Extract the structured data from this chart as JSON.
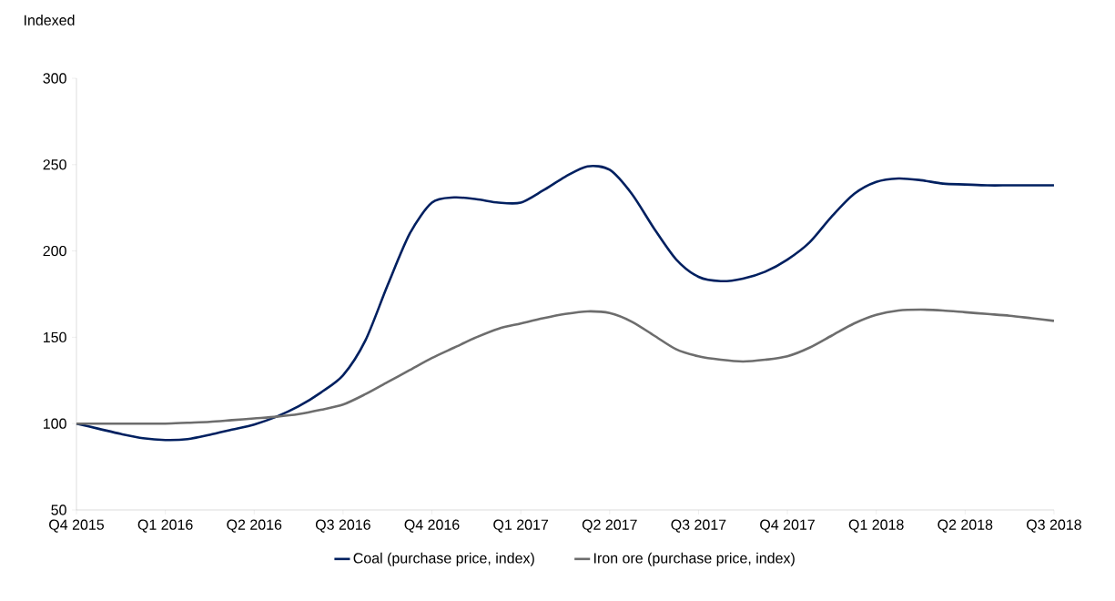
{
  "chart_data": {
    "type": "line",
    "ylabel": "Indexed",
    "categories": [
      "Q4 2015",
      null,
      null,
      null,
      "Q1 2016",
      null,
      null,
      null,
      "Q2 2016",
      null,
      null,
      null,
      "Q3 2016",
      null,
      null,
      null,
      "Q4 2016",
      null,
      null,
      null,
      "Q1 2017",
      null,
      null,
      null,
      "Q2 2017",
      null,
      null,
      null,
      "Q3 2017",
      null,
      null,
      null,
      "Q4 2017",
      null,
      null,
      null,
      "Q1 2018",
      null,
      null,
      null,
      "Q2 2018",
      null,
      null,
      null,
      "Q3 2018"
    ],
    "ylim": [
      50,
      300
    ],
    "yticks": [
      50,
      100,
      150,
      200,
      250,
      300
    ],
    "grid": false,
    "legend": "bottom",
    "marker": "none",
    "line_style": "solid",
    "series": [
      {
        "name": "Coal (purchase price, index)",
        "color": "#002060",
        "values": [
          100,
          97,
          94,
          91.5,
          90.5,
          91,
          93.5,
          96.5,
          99.5,
          104,
          110,
          118,
          128,
          148,
          180,
          210,
          228,
          231,
          230,
          228,
          228,
          235,
          243,
          249,
          247,
          233,
          213,
          195,
          185,
          182.5,
          184,
          188,
          195,
          205,
          220,
          233,
          240,
          242,
          241,
          239,
          238.5,
          238,
          238,
          238,
          238
        ]
      },
      {
        "name": "Iron ore (purchase price, index)",
        "color": "#6d6d6d",
        "values": [
          100,
          100,
          100,
          100,
          100,
          100.5,
          101,
          102,
          103,
          104,
          105.5,
          108,
          111,
          117,
          124,
          131,
          138,
          144,
          150,
          155,
          158,
          161,
          163.5,
          165,
          164,
          159,
          151,
          143,
          139,
          137,
          136,
          137,
          139,
          144,
          151,
          158,
          163,
          165.5,
          166,
          165.5,
          164.5,
          163.5,
          162.5,
          161,
          159.5
        ]
      }
    ]
  }
}
